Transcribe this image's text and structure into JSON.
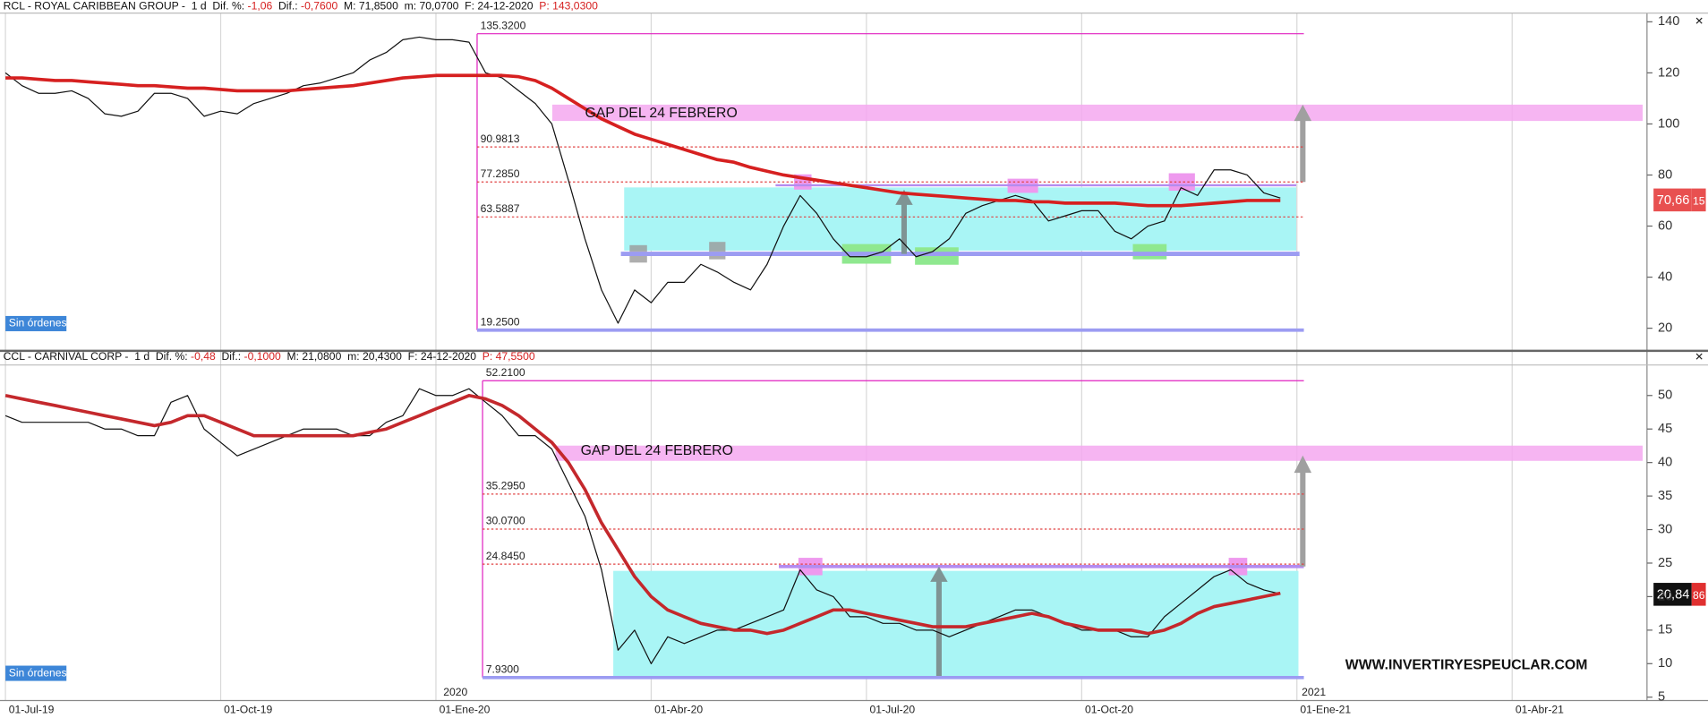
{
  "x_axis": {
    "categories": [
      "01-Jul-19",
      null,
      null,
      null,
      null,
      null,
      null,
      null,
      null,
      null,
      null,
      null,
      null,
      "01-Oct-19",
      null,
      null,
      null,
      null,
      null,
      null,
      null,
      null,
      null,
      null,
      null,
      null,
      "01-Ene-20",
      null,
      null,
      null,
      null,
      null,
      null,
      null,
      null,
      null,
      null,
      null,
      null,
      "01-Abr-20",
      null,
      null,
      null,
      null,
      null,
      null,
      null,
      null,
      null,
      null,
      null,
      null,
      "01-Jul-20",
      null,
      null,
      null,
      null,
      null,
      null,
      null,
      null,
      null,
      null,
      null,
      null,
      "01-Oct-20",
      null,
      null,
      null,
      null,
      null,
      null,
      null,
      null,
      null,
      null,
      null,
      null,
      "01-Ene-21",
      null,
      null,
      null,
      null,
      null,
      null,
      null,
      null,
      null,
      null,
      null,
      null,
      "01-Abr-21",
      null,
      null,
      null,
      null,
      null,
      null,
      null,
      null
    ],
    "year_labels": [
      "2020",
      "2021"
    ]
  },
  "watermark": "WWW.INVERTIRYESPEUCLAR.COM",
  "chart_data": [
    {
      "type": "line",
      "header": [
        {
          "text": "RCL - ROYAL CARIBBEAN GROUP -  1 d  Dif. %: ",
          "color": "#111111"
        },
        {
          "text": "-1,06",
          "color": "#d62020"
        },
        {
          "text": "  Dif.: ",
          "color": "#111111"
        },
        {
          "text": "-0,7600",
          "color": "#d62020"
        },
        {
          "text": "  M: 71,8500  m: 70,0700  F: 24-12-2020  ",
          "color": "#111111"
        },
        {
          "text": "P: 143,0300",
          "color": "#d62020"
        }
      ],
      "ylim": [
        12,
        143.4
      ],
      "yticks": [
        20,
        40,
        60,
        80,
        100,
        120,
        140
      ],
      "series": [
        {
          "color": "#111111",
          "width": 1,
          "values": [
            120,
            115,
            112,
            112,
            113,
            110,
            104,
            103,
            105,
            112,
            112,
            110,
            103,
            105,
            104,
            108,
            110,
            112,
            115,
            116,
            118,
            120,
            125,
            128,
            133,
            134,
            133,
            133,
            132,
            120,
            118,
            113,
            108,
            100,
            78,
            55,
            35,
            22,
            35,
            30,
            38,
            38,
            45,
            42,
            38,
            35,
            45,
            60,
            72,
            65,
            55,
            48,
            48,
            50,
            55,
            48,
            50,
            55,
            65,
            68,
            70,
            72,
            70,
            62,
            64,
            66,
            66,
            58,
            55,
            60,
            62,
            75,
            72,
            82,
            82,
            80,
            73,
            71,
            null,
            null,
            null,
            null,
            null,
            null,
            null,
            null,
            null,
            null,
            null,
            null,
            null,
            null,
            null,
            null,
            null,
            null,
            null,
            null
          ]
        },
        {
          "color": "#d62020",
          "width": 3,
          "values": [
            118,
            118,
            117.5,
            117,
            117,
            116.5,
            116,
            115.5,
            115,
            115,
            114.5,
            114,
            114,
            113.5,
            113,
            113,
            113,
            113,
            113.5,
            114,
            114.5,
            115,
            116,
            117,
            118,
            118.5,
            119,
            119,
            119,
            119,
            119,
            118.5,
            117,
            114,
            110,
            106,
            102,
            99,
            96,
            94,
            92,
            90,
            88,
            86,
            85,
            83,
            81.5,
            80,
            79,
            78,
            77,
            76,
            75,
            74,
            73,
            72.5,
            72,
            71.5,
            71,
            70.5,
            70,
            70,
            69.5,
            69.5,
            69,
            69,
            69,
            69,
            68.5,
            68,
            68,
            68,
            68.5,
            69,
            69.5,
            70,
            70,
            70,
            null,
            null,
            null,
            null,
            null,
            null,
            null,
            null,
            null,
            null,
            null,
            null,
            null,
            null,
            null,
            null,
            null,
            null,
            null,
            null
          ]
        }
      ],
      "fib_levels": [
        {
          "value": 135.32,
          "label": "135.3200",
          "style": "solid",
          "color": "#e020c0"
        },
        {
          "value": 90.9813,
          "label": "90.9813",
          "style": "dashed",
          "color": "#e04040"
        },
        {
          "value": 77.285,
          "label": "77.2850",
          "style": "dashed",
          "color": "#e04040"
        },
        {
          "value": 63.5887,
          "label": "63.5887",
          "style": "dashed",
          "color": "#e04040"
        },
        {
          "value": 19.25,
          "label": "19.2500",
          "style": "band",
          "color": "#9c9cf2"
        }
      ],
      "gap_label": "GAP DEL 24 FEBRERO",
      "order_status": "Sin órdenes",
      "last_price": "70,66",
      "timer": "15"
    },
    {
      "type": "line",
      "header": [
        {
          "text": "CCL - CARNIVAL CORP -  1 d  Dif. %: ",
          "color": "#111111"
        },
        {
          "text": "-0,48",
          "color": "#d62020"
        },
        {
          "text": "  Dif.: ",
          "color": "#111111"
        },
        {
          "text": "-0,1000",
          "color": "#d62020"
        },
        {
          "text": "  M: 21,0800  m: 20,4300  F: 24-12-2020  ",
          "color": "#111111"
        },
        {
          "text": "P: 47,5500",
          "color": "#d62020"
        }
      ],
      "ylim": [
        4.5,
        54.55
      ],
      "yticks": [
        5,
        10,
        15,
        20,
        25,
        30,
        35,
        40,
        45,
        50
      ],
      "series": [
        {
          "color": "#111111",
          "width": 1,
          "values": [
            47,
            46,
            46,
            46,
            46,
            46,
            45,
            45,
            44,
            44,
            49,
            50,
            45,
            43,
            41,
            42,
            43,
            44,
            45,
            45,
            45,
            44,
            44,
            46,
            47,
            51,
            50,
            50,
            51,
            49,
            47,
            44,
            44,
            42,
            37,
            32,
            24,
            12,
            15,
            10,
            14,
            13,
            14,
            15,
            15,
            16,
            17,
            18,
            24,
            21,
            20,
            17,
            17,
            16,
            16,
            15,
            15,
            14,
            15,
            16,
            17,
            18,
            18,
            17,
            16,
            15,
            15,
            15,
            14,
            14,
            17,
            19,
            21,
            23,
            24,
            22,
            21,
            20.4,
            null,
            null,
            null,
            null,
            null,
            null,
            null,
            null,
            null,
            null,
            null,
            null,
            null,
            null,
            null,
            null,
            null,
            null,
            null,
            null,
            null,
            null
          ]
        },
        {
          "color": "#c4282c",
          "width": 3,
          "values": [
            50,
            49.5,
            49,
            48.5,
            48,
            47.5,
            47,
            46.5,
            46,
            45.5,
            46,
            47,
            47,
            46,
            45,
            44,
            44,
            44,
            44,
            44,
            44,
            44,
            44.5,
            45,
            46,
            47,
            48,
            49,
            50,
            49.5,
            48.5,
            47,
            45,
            43,
            40,
            36,
            31,
            27,
            23,
            20,
            18,
            17,
            16,
            15.5,
            15,
            15,
            14.5,
            15,
            16,
            17,
            18,
            18,
            17.5,
            17,
            16.5,
            16,
            15.5,
            15.5,
            15.5,
            16,
            16.5,
            17,
            17.5,
            17,
            16,
            15.5,
            15,
            15,
            15,
            14.5,
            15,
            16,
            17.5,
            18.5,
            19,
            19.5,
            20,
            20.5,
            null,
            null,
            null,
            null,
            null,
            null,
            null,
            null,
            null,
            null,
            null,
            null,
            null,
            null,
            null,
            null,
            null,
            null,
            null,
            null,
            null,
            null
          ]
        }
      ],
      "fib_levels": [
        {
          "value": 52.21,
          "label": "52.2100",
          "style": "solid",
          "color": "#e020c0"
        },
        {
          "value": 35.295,
          "label": "35.2950",
          "style": "dashed",
          "color": "#e04040"
        },
        {
          "value": 30.07,
          "label": "30.0700",
          "style": "dashed",
          "color": "#e04040"
        },
        {
          "value": 24.845,
          "label": "24.8450",
          "style": "dashed",
          "color": "#e04040"
        },
        {
          "value": 7.93,
          "label": "7.9300",
          "style": "band",
          "color": "#9c9cf2"
        }
      ],
      "gap_label": "GAP DEL 24 FEBRERO",
      "order_status": "Sin órdenes",
      "last_price": "20,84",
      "timer": "86"
    }
  ]
}
